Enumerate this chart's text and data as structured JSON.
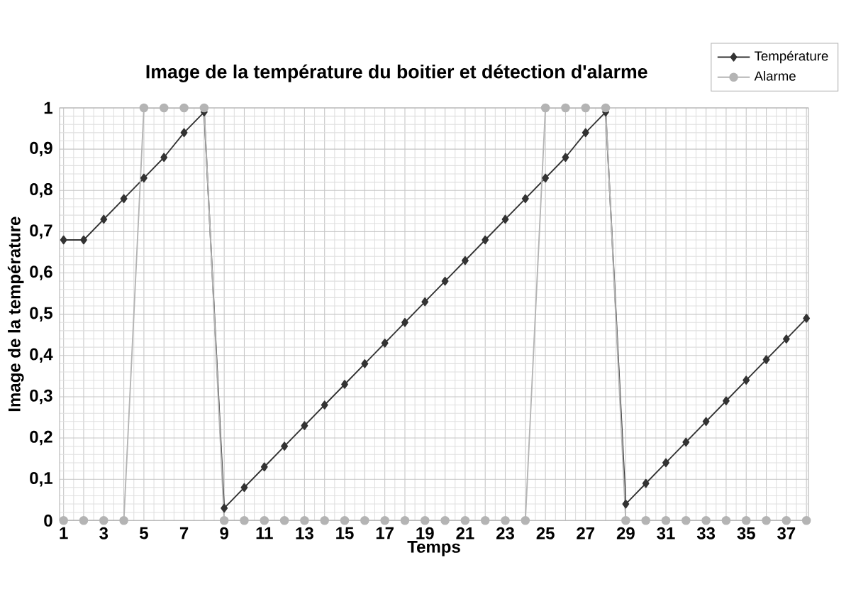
{
  "chart_data": {
    "type": "line",
    "title": "Image de la température du boitier et détection d'alarme",
    "xlabel": "Temps",
    "ylabel": "Image de la température",
    "categories": [
      "1",
      null,
      "3",
      null,
      "5",
      null,
      "7",
      null,
      "9",
      null,
      "11",
      null,
      "13",
      null,
      "15",
      null,
      "17",
      null,
      "19",
      null,
      "21",
      null,
      "23",
      null,
      "25",
      null,
      "27",
      null,
      "29",
      null,
      "31",
      null,
      "33",
      null,
      "35",
      null,
      "37",
      null
    ],
    "series": [
      {
        "name": "Température",
        "color": "#333333",
        "marker": "diamond",
        "values": [
          0.68,
          0.68,
          0.73,
          0.78,
          0.83,
          0.88,
          0.94,
          0.99,
          0.03,
          0.08,
          0.13,
          0.18,
          0.23,
          0.28,
          0.33,
          0.38,
          0.43,
          0.48,
          0.53,
          0.58,
          0.63,
          0.68,
          0.73,
          0.78,
          0.83,
          0.88,
          0.94,
          0.99,
          0.04,
          0.09,
          0.14,
          0.19,
          0.24,
          0.29,
          0.34,
          0.39,
          0.44,
          0.49
        ]
      },
      {
        "name": "Alarme",
        "color": "#b4b4b4",
        "marker": "circle",
        "values": [
          0,
          0,
          0,
          0,
          1,
          1,
          1,
          1,
          0,
          0,
          0,
          0,
          0,
          0,
          0,
          0,
          0,
          0,
          0,
          0,
          0,
          0,
          0,
          0,
          1,
          1,
          1,
          1,
          0,
          0,
          0,
          0,
          0,
          0,
          0,
          0,
          0,
          0
        ]
      }
    ],
    "ylim": [
      0,
      1
    ],
    "yticks": [
      0,
      {
        "value": 0.1,
        "label": "0,1"
      },
      {
        "value": 0.2,
        "label": "0,2"
      },
      {
        "value": 0.3,
        "label": "0,3"
      },
      {
        "value": 0.4,
        "label": "0,4"
      },
      {
        "value": 0.5,
        "label": "0,5"
      },
      {
        "value": 0.6,
        "label": "0,6"
      },
      {
        "value": 0.7,
        "label": "0,7"
      },
      {
        "value": 0.8,
        "label": "0,8"
      },
      {
        "value": 0.9,
        "label": "0,9"
      },
      1
    ],
    "grid": true,
    "legend": "top right",
    "line_style": "solid"
  }
}
